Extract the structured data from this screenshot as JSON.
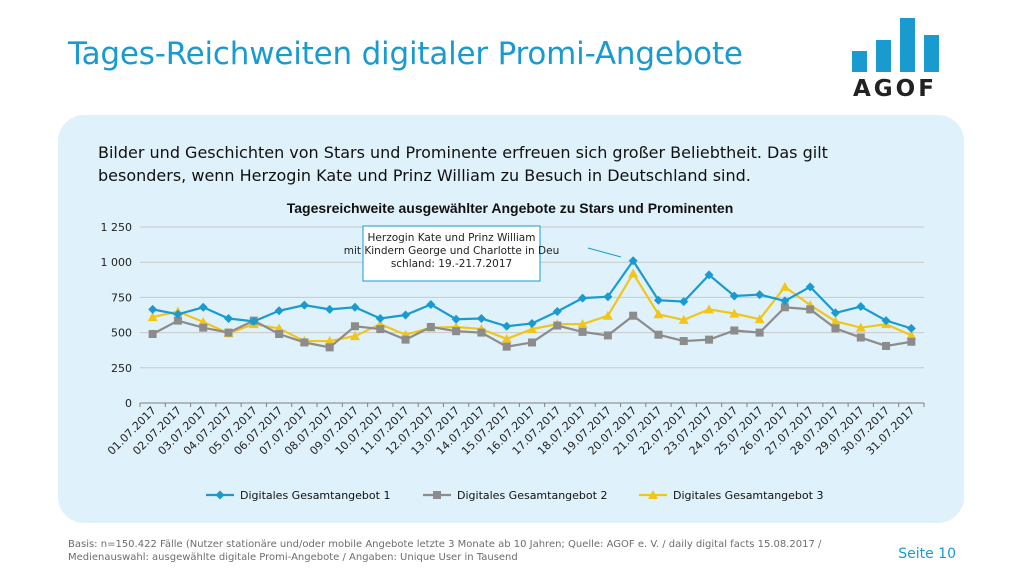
{
  "slide": {
    "title": "Tages-Reichweiten digitaler Promi-Angebote",
    "logo_text": "AGOF",
    "intro": "Bilder und Geschichten von Stars und Prominente erfreuen sich großer Beliebtheit. Das gilt besonders, wenn Herzogin Kate und Prinz William zu Besuch in Deutschland sind.",
    "footnote": "Basis: n=150.422 Fälle (Nutzer stationäre und/oder mobile Angebote letzte 3 Monate ab 10 Jahren; Quelle: AGOF e. V. / daily digital facts 15.08.2017 / Medienauswahl: ausgewählte digitale Promi-Angebote / Angaben: Unique User in Tausend",
    "page": "Seite 10",
    "accent_color": "#1a9bd0"
  },
  "chart_data": {
    "type": "line",
    "title": "Tagesreichweite ausgewählter Angebote zu Stars und Prominenten",
    "categories": [
      "01.07.2017",
      "02.07.2017",
      "03.07.2017",
      "04.07.2017",
      "05.07.2017",
      "06.07.2017",
      "07.07.2017",
      "08.07.2017",
      "09.07.2017",
      "10.07.2017",
      "11.07.2017",
      "12.07.2017",
      "13.07.2017",
      "14.07.2017",
      "15.07.2017",
      "16.07.2017",
      "17.07.2017",
      "18.07.2017",
      "19.07.2017",
      "20.07.2017",
      "21.07.2017",
      "22.07.2017",
      "23.07.2017",
      "24.07.2017",
      "25.07.2017",
      "26.07.2017",
      "27.07.2017",
      "28.07.2017",
      "29.07.2017",
      "30.07.2017",
      "31.07.2017"
    ],
    "y_ticks": [
      "0",
      "250",
      "500",
      "750",
      "1 000",
      "1 250"
    ],
    "ylim": [
      0,
      1250
    ],
    "grid": true,
    "legend_position": "bottom",
    "annotation": "Herzogin Kate und Prinz William mit Kindern George und Charlotte in Deutschland: 19.-21.7.2017",
    "series": [
      {
        "name": "Digitales Gesamtangebot 1",
        "color": "#1a9bd0",
        "marker": "diamond",
        "values": [
          665,
          630,
          680,
          600,
          580,
          655,
          695,
          665,
          680,
          600,
          625,
          700,
          595,
          600,
          545,
          565,
          650,
          745,
          755,
          1010,
          730,
          720,
          910,
          760,
          770,
          725,
          825,
          640,
          685,
          585,
          530
        ]
      },
      {
        "name": "Digitales Gesamtangebot 2",
        "color": "#8c8c8c",
        "marker": "square",
        "values": [
          490,
          585,
          535,
          500,
          585,
          490,
          430,
          395,
          545,
          525,
          450,
          540,
          510,
          500,
          400,
          430,
          550,
          505,
          480,
          620,
          485,
          440,
          450,
          515,
          500,
          680,
          665,
          530,
          465,
          405,
          435
        ]
      },
      {
        "name": "Digitales Gesamtangebot 3",
        "color": "#f2c618",
        "marker": "triangle",
        "values": [
          610,
          650,
          575,
          495,
          560,
          530,
          440,
          440,
          475,
          560,
          485,
          535,
          540,
          525,
          455,
          525,
          560,
          560,
          620,
          920,
          630,
          590,
          665,
          635,
          595,
          825,
          695,
          580,
          535,
          560,
          480
        ]
      }
    ]
  }
}
